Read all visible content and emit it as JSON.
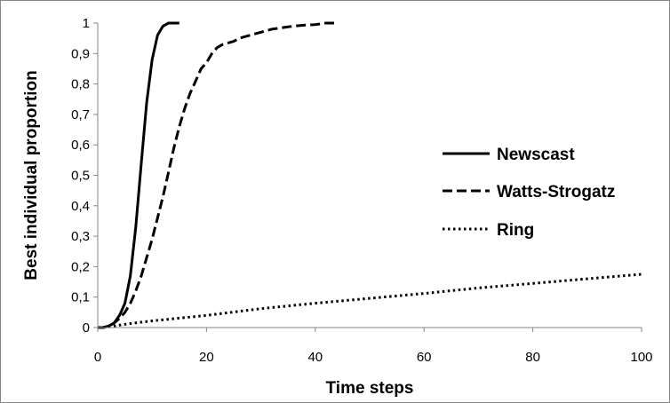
{
  "chart_data": {
    "type": "line",
    "title": "",
    "xlabel": "Time steps",
    "ylabel": "Best individual proportion",
    "xlim": [
      0,
      100
    ],
    "ylim": [
      0,
      1
    ],
    "xticks": [
      0,
      20,
      40,
      60,
      80,
      100
    ],
    "xtick_labels": [
      "0",
      "20",
      "40",
      "60",
      "80",
      "100"
    ],
    "yticks": [
      0,
      0.1,
      0.2,
      0.3,
      0.4,
      0.5,
      0.6,
      0.7,
      0.8,
      0.9,
      1
    ],
    "ytick_labels": [
      "0",
      "0,1",
      "0,2",
      "0,3",
      "0,4",
      "0,5",
      "0,6",
      "0,7",
      "0,8",
      "0,9",
      "1"
    ],
    "grid": false,
    "legend_position": "right",
    "series": [
      {
        "name": "Newscast",
        "style": "solid",
        "color": "#000000",
        "x": [
          0,
          1,
          2,
          3,
          4,
          5,
          6,
          7,
          8,
          9,
          10,
          11,
          12,
          13,
          14,
          15
        ],
        "y": [
          0,
          0,
          0.005,
          0.015,
          0.04,
          0.08,
          0.17,
          0.33,
          0.54,
          0.74,
          0.88,
          0.96,
          0.99,
          1.0,
          1.0,
          1.0
        ]
      },
      {
        "name": "Watts-Strogatz",
        "style": "dashed",
        "color": "#000000",
        "x": [
          0,
          1,
          2,
          3,
          4,
          5,
          6,
          7,
          8,
          9,
          10,
          11,
          12,
          13,
          14,
          15,
          16,
          17,
          18,
          19,
          20,
          21,
          22,
          23,
          24,
          25,
          26,
          28,
          30,
          32,
          34,
          36,
          38,
          40,
          42,
          44
        ],
        "y": [
          0,
          0,
          0.005,
          0.015,
          0.03,
          0.05,
          0.08,
          0.12,
          0.17,
          0.23,
          0.29,
          0.36,
          0.43,
          0.51,
          0.59,
          0.66,
          0.72,
          0.77,
          0.81,
          0.85,
          0.87,
          0.9,
          0.92,
          0.93,
          0.935,
          0.94,
          0.95,
          0.96,
          0.97,
          0.98,
          0.985,
          0.99,
          0.993,
          0.995,
          1.0,
          1.0
        ]
      },
      {
        "name": "Ring",
        "style": "dotted",
        "color": "#000000",
        "x": [
          0,
          2,
          4,
          6,
          10,
          20,
          30,
          40,
          50,
          60,
          70,
          80,
          90,
          100
        ],
        "y": [
          0,
          0.002,
          0.008,
          0.013,
          0.022,
          0.04,
          0.062,
          0.08,
          0.096,
          0.112,
          0.13,
          0.145,
          0.16,
          0.175
        ]
      }
    ]
  }
}
